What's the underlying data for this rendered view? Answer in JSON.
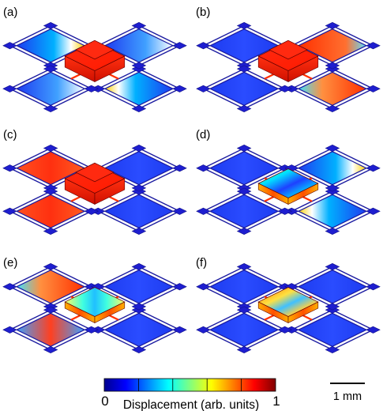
{
  "panels": [
    {
      "label": "(a)",
      "center_state": "high",
      "frames": [
        "mixed-left",
        "mixed-right",
        "low-mixed",
        "low-mixed"
      ]
    },
    {
      "label": "(b)",
      "center_state": "high",
      "frames": [
        "low",
        "mixed-high",
        "high-mixed",
        "low"
      ]
    },
    {
      "label": "(c)",
      "center_state": "high",
      "frames": [
        "high",
        "low",
        "low",
        "high"
      ]
    },
    {
      "label": "(d)",
      "center_state": "mode-low",
      "frames": [
        "low",
        "mixed-right",
        "mixed-left",
        "low"
      ]
    },
    {
      "label": "(e)",
      "center_state": "mode-mid",
      "frames": [
        "mixed-high",
        "low",
        "low",
        "mixed-mid"
      ]
    },
    {
      "label": "(f)",
      "center_state": "mode-ring",
      "frames": [
        "low",
        "low",
        "low",
        "low"
      ]
    }
  ],
  "colorbar": {
    "min_label": "0",
    "max_label": "1",
    "title": "Displacement (arb. units)",
    "colors": [
      "#00008f",
      "#0000ff",
      "#0080ff",
      "#00ffff",
      "#80ff80",
      "#ffff00",
      "#ff8000",
      "#ff0000",
      "#800000"
    ]
  },
  "scalebar": {
    "label": "1 mm"
  },
  "palette": {
    "frame_stroke": "#1a1aa0",
    "pad": "#1e1ecf",
    "beam_hot": "#ff3000"
  }
}
